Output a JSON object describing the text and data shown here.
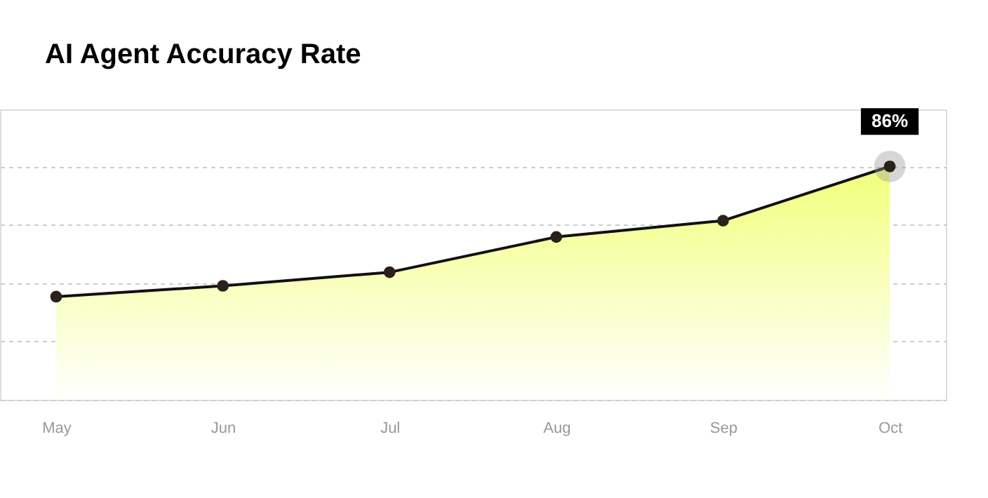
{
  "chart_data": {
    "type": "area",
    "title": "AI Agent Accuracy Rate",
    "ylim": [
      0,
      107
    ],
    "yticks": [
      {
        "value": 0,
        "label": null
      },
      {
        "value": 21.5,
        "label": null
      },
      {
        "value": 43,
        "label": null
      },
      {
        "value": 64.5,
        "label": null
      },
      {
        "value": 86,
        "label": null
      }
    ],
    "categories": [
      "May",
      "Jun",
      "Jul",
      "Aug",
      "Sep",
      "Oct"
    ],
    "series": [
      {
        "color": "#111111",
        "values": [
          38,
          42,
          47,
          60,
          66,
          86
        ],
        "value_labels": [
          null,
          null,
          null,
          null,
          null,
          "86%"
        ]
      }
    ],
    "marker": "circle",
    "grid": "y",
    "tick_labels": "x"
  }
}
